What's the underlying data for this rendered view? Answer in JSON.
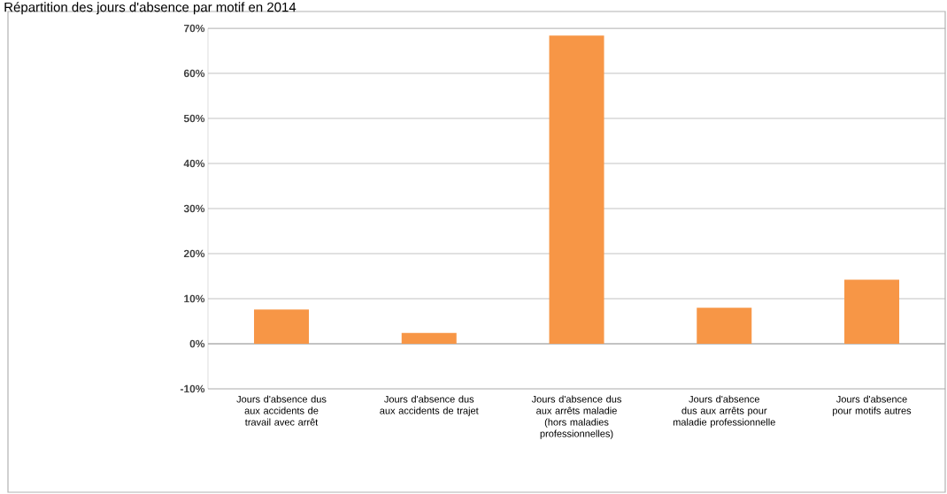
{
  "chart_data": {
    "type": "bar",
    "title": "Répartition des jours d'absence par motif en 2014",
    "categories": [
      "Jours d'absence dus aux accidents de travail avec arrêt",
      "Jours d'absence dus aux accidents de trajet",
      "Jours d'absence dus aux arrêts maladie (hors maladies professionnelles)",
      "Jours d'absence dus aux arrêts pour maladie professionnelle",
      "Jours d'absence pour motifs autres"
    ],
    "values": [
      7.6,
      2.4,
      68.4,
      8.0,
      14.2
    ],
    "color": "#f79646",
    "ylim": [
      -10,
      70
    ],
    "yticks": [
      {
        "value": -10,
        "label": "-10%"
      },
      {
        "value": 0,
        "label": "0%"
      },
      {
        "value": 10,
        "label": "10%"
      },
      {
        "value": 20,
        "label": "20%"
      },
      {
        "value": 30,
        "label": "30%"
      },
      {
        "value": 40,
        "label": "40%"
      },
      {
        "value": 50,
        "label": "50%"
      },
      {
        "value": 60,
        "label": "60%"
      },
      {
        "value": 70,
        "label": "70%"
      }
    ],
    "grid": "y"
  }
}
